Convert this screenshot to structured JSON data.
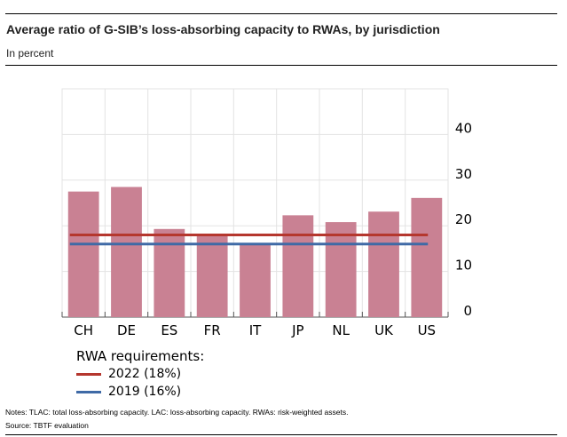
{
  "header": {
    "title": "Average ratio of G-SIB’s loss-absorbing capacity to RWAs, by jurisdiction",
    "subtitle": "In percent"
  },
  "chart_data": {
    "type": "bar",
    "categories": [
      "CH",
      "DE",
      "ES",
      "FR",
      "IT",
      "JP",
      "NL",
      "UK",
      "US"
    ],
    "values": [
      27.5,
      28.5,
      19.3,
      18.2,
      16.2,
      22.3,
      20.8,
      23.1,
      26.1
    ],
    "y_ticks": [
      0,
      10,
      20,
      30,
      40
    ],
    "ylim": [
      0,
      50
    ],
    "grid": true,
    "y_axis_side": "right",
    "bar_color": "#c98193",
    "reference_lines": [
      {
        "name": "2022 (18%)",
        "value": 18,
        "color": "#b5372e"
      },
      {
        "name": "2019 (16%)",
        "value": 16,
        "color": "#3f6aa6"
      }
    ],
    "legend_title": "RWA requirements:",
    "legend_position": "bottom-left"
  },
  "notes": {
    "notes_line": "Notes: TLAC: total loss-absorbing capacity. LAC: loss-absorbing capacity. RWAs: risk-weighted assets.",
    "source_line": "Source: TBTF evaluation"
  }
}
